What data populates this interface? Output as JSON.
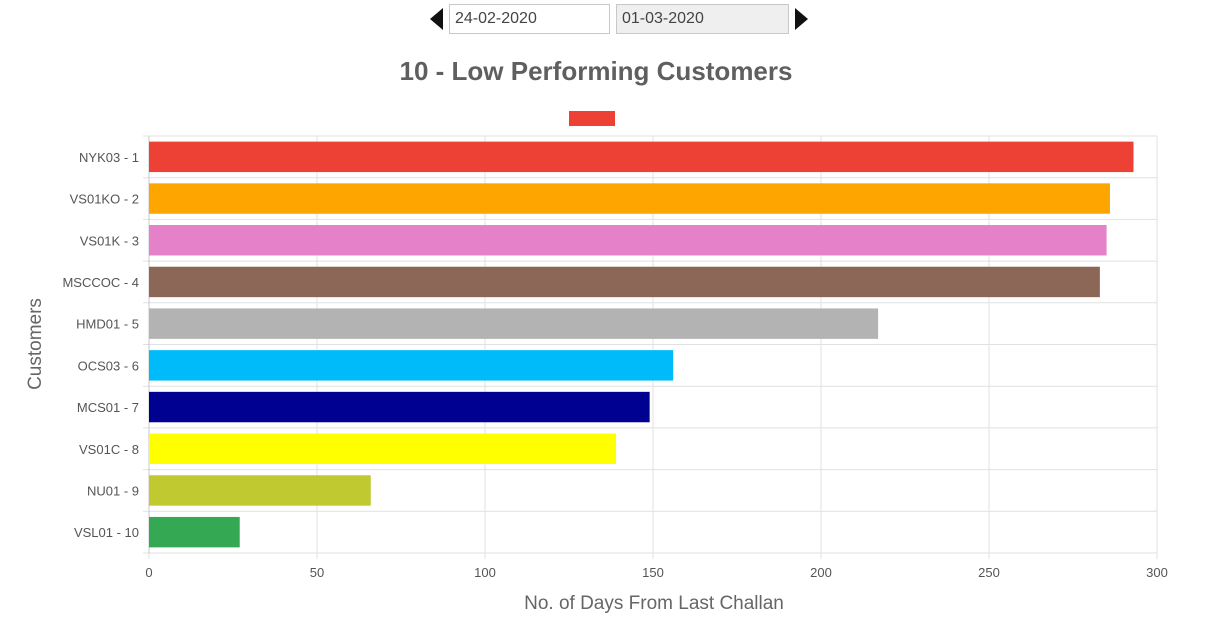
{
  "date_range": {
    "start": "24-02-2020",
    "end": "01-03-2020"
  },
  "legend_color": "#ed4136",
  "chart_data": {
    "type": "bar",
    "orientation": "horizontal",
    "title": "10 - Low Performing Customers",
    "xlabel": "No. of Days From Last Challan",
    "ylabel": "Customers",
    "xlim": [
      0,
      300
    ],
    "xticks": [
      "0",
      "50",
      "100",
      "150",
      "200",
      "250",
      "300"
    ],
    "grid": true,
    "legend": "top",
    "categories": [
      "NYK03 - 1",
      "VS01KO - 2",
      "VS01K - 3",
      "MSCCOC - 4",
      "HMD01 - 5",
      "OCS03 - 6",
      "MCS01 - 7",
      "VS01C - 8",
      "NU01 - 9",
      "VSL01 - 10"
    ],
    "values": [
      293,
      286,
      285,
      283,
      217,
      156,
      149,
      139,
      66,
      27
    ],
    "colors": [
      "#ed4136",
      "#ffa500",
      "#e581c9",
      "#8c6656",
      "#b3b3b3",
      "#00bbf9",
      "#000091",
      "#ffff00",
      "#c1c930",
      "#34a853"
    ]
  }
}
